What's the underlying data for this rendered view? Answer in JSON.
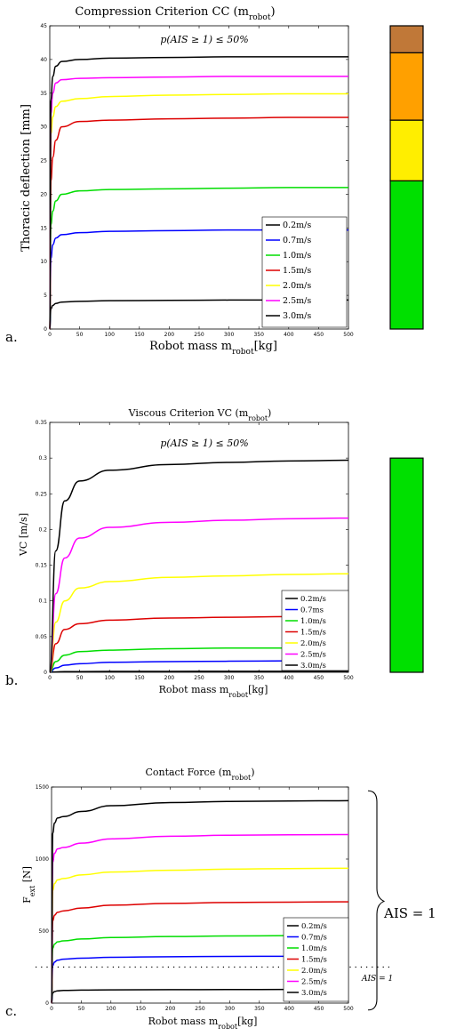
{
  "chart_data": [
    {
      "type": "line",
      "panel_label": "a.",
      "title": "Compression Criterion CC (m",
      "title_sub": "robot",
      "title_end": ")",
      "xlabel": "Robot mass m",
      "xlabel_sub": "robot",
      "xlabel_end": "[kg]",
      "ylabel": "Thoracic deflection [mm]",
      "annotation": "p(AIS ≥ 1) ≤ 50%",
      "xlim": [
        0,
        500
      ],
      "ylim": [
        0,
        45
      ],
      "xticks": [
        "0",
        "50",
        "100",
        "150",
        "200",
        "250",
        "300",
        "350",
        "400",
        "450",
        "500"
      ],
      "yticks": [
        "0",
        "5",
        "10",
        "15",
        "20",
        "25",
        "30",
        "35",
        "40",
        "45"
      ],
      "series": [
        {
          "name": "0.2m/s",
          "color": "#000000",
          "x": [
            0,
            2,
            5,
            10,
            20,
            50,
            100,
            200,
            300,
            400,
            500
          ],
          "y": [
            0,
            3.0,
            3.5,
            3.8,
            4.0,
            4.1,
            4.2,
            4.25,
            4.3,
            4.3,
            4.3
          ]
        },
        {
          "name": "0.7m/s",
          "color": "#0000ff",
          "x": [
            0,
            2,
            5,
            10,
            20,
            50,
            100,
            200,
            300,
            400,
            500
          ],
          "y": [
            0,
            10.5,
            12.5,
            13.5,
            14.0,
            14.3,
            14.5,
            14.6,
            14.7,
            14.7,
            14.7
          ]
        },
        {
          "name": "1.0m/s",
          "color": "#00dd00",
          "x": [
            0,
            2,
            5,
            10,
            20,
            50,
            100,
            200,
            300,
            400,
            500
          ],
          "y": [
            0,
            15.5,
            17.5,
            19.0,
            20.0,
            20.5,
            20.7,
            20.8,
            20.9,
            21.0,
            21.0
          ]
        },
        {
          "name": "1.5m/s",
          "color": "#dd0000",
          "x": [
            0,
            2,
            5,
            10,
            20,
            50,
            100,
            200,
            300,
            400,
            500
          ],
          "y": [
            0,
            22.0,
            25.5,
            28.0,
            30.0,
            30.8,
            31.0,
            31.2,
            31.3,
            31.4,
            31.4
          ]
        },
        {
          "name": "2.0m/s",
          "color": "#ffff00",
          "x": [
            0,
            2,
            5,
            10,
            20,
            50,
            100,
            200,
            300,
            400,
            500
          ],
          "y": [
            0,
            29.0,
            31.5,
            33.0,
            33.8,
            34.2,
            34.5,
            34.7,
            34.8,
            34.9,
            34.9
          ]
        },
        {
          "name": "2.5m/s",
          "color": "#ff00ff",
          "x": [
            0,
            2,
            5,
            10,
            20,
            50,
            100,
            200,
            300,
            400,
            500
          ],
          "y": [
            0,
            32.0,
            35.0,
            36.5,
            37.0,
            37.2,
            37.3,
            37.4,
            37.5,
            37.5,
            37.5
          ]
        },
        {
          "name": "3.0m/s",
          "color": "#000000",
          "x": [
            0,
            2,
            5,
            10,
            20,
            50,
            100,
            200,
            300,
            400,
            500
          ],
          "y": [
            0,
            34.0,
            37.5,
            39.0,
            39.7,
            40.0,
            40.2,
            40.3,
            40.4,
            40.4,
            40.4
          ]
        }
      ],
      "severity_bar": [
        {
          "color": "#00e000",
          "from": 0,
          "to": 22
        },
        {
          "color": "#ffee00",
          "from": 22,
          "to": 31
        },
        {
          "color": "#ffa000",
          "from": 31,
          "to": 41
        },
        {
          "color": "#c07838",
          "from": 41,
          "to": 45
        }
      ]
    },
    {
      "type": "line",
      "panel_label": "b.",
      "title": "Viscous Criterion VC (m",
      "title_sub": "robot",
      "title_end": ")",
      "xlabel": "Robot mass m",
      "xlabel_sub": "robot",
      "xlabel_end": "[kg]",
      "ylabel": "VC [m/s]",
      "annotation": "p(AIS ≥ 1) ≤ 50%",
      "xlim": [
        0,
        500
      ],
      "ylim": [
        0,
        0.35
      ],
      "xticks": [
        "0",
        "50",
        "100",
        "150",
        "200",
        "250",
        "300",
        "350",
        "400",
        "450",
        "500"
      ],
      "yticks": [
        "0",
        "0.05",
        "0.1",
        "0.15",
        "0.2",
        "0.25",
        "0.3",
        "0.35"
      ],
      "series": [
        {
          "name": "0.2m/s",
          "color": "#000000",
          "x": [
            0,
            10,
            25,
            50,
            100,
            200,
            300,
            400,
            500
          ],
          "y": [
            0,
            0.0005,
            0.001,
            0.001,
            0.0012,
            0.0013,
            0.0014,
            0.0014,
            0.0014
          ]
        },
        {
          "name": "0.7ms",
          "color": "#0000ff",
          "x": [
            0,
            10,
            25,
            50,
            100,
            200,
            300,
            400,
            500
          ],
          "y": [
            0,
            0.006,
            0.01,
            0.012,
            0.014,
            0.015,
            0.0155,
            0.016,
            0.016
          ]
        },
        {
          "name": "1.0m/s",
          "color": "#00dd00",
          "x": [
            0,
            10,
            25,
            50,
            100,
            200,
            300,
            400,
            500
          ],
          "y": [
            0,
            0.015,
            0.024,
            0.029,
            0.031,
            0.033,
            0.034,
            0.034,
            0.035
          ]
        },
        {
          "name": "1.5m/s",
          "color": "#dd0000",
          "x": [
            0,
            10,
            25,
            50,
            100,
            200,
            300,
            400,
            500
          ],
          "y": [
            0,
            0.04,
            0.06,
            0.068,
            0.073,
            0.076,
            0.077,
            0.078,
            0.078
          ]
        },
        {
          "name": "2.0m/s",
          "color": "#ffff00",
          "x": [
            0,
            10,
            25,
            50,
            100,
            200,
            300,
            400,
            500
          ],
          "y": [
            0,
            0.07,
            0.1,
            0.118,
            0.127,
            0.133,
            0.135,
            0.137,
            0.138
          ]
        },
        {
          "name": "2.5m/s",
          "color": "#ff00ff",
          "x": [
            0,
            10,
            25,
            50,
            100,
            200,
            300,
            400,
            500
          ],
          "y": [
            0,
            0.11,
            0.16,
            0.188,
            0.203,
            0.21,
            0.213,
            0.215,
            0.216
          ]
        },
        {
          "name": "3.0m/s",
          "color": "#000000",
          "x": [
            0,
            10,
            25,
            50,
            100,
            200,
            300,
            400,
            500
          ],
          "y": [
            0,
            0.17,
            0.24,
            0.268,
            0.283,
            0.291,
            0.294,
            0.296,
            0.297
          ]
        }
      ],
      "severity_bar": [
        {
          "color": "#00e000",
          "from": 0,
          "to": 0.3
        }
      ]
    },
    {
      "type": "line",
      "panel_label": "c.",
      "title": "Contact Force (m",
      "title_sub": "robot",
      "title_end": ")",
      "xlabel": "Robot mass m",
      "xlabel_sub": "robot",
      "xlabel_end": "[kg]",
      "ylabel": "F",
      "ylabel_sub": "ext",
      "ylabel_end": " [N]",
      "xlim": [
        0,
        500
      ],
      "ylim": [
        0,
        1500
      ],
      "xticks": [
        "0",
        "50",
        "100",
        "150",
        "200",
        "250",
        "300",
        "350",
        "400",
        "450",
        "500"
      ],
      "yticks": [
        "0",
        "500",
        "1000",
        "1500"
      ],
      "threshold": {
        "value": 250,
        "label": "AIS = 1"
      },
      "brace_label": "AIS = 1",
      "series": [
        {
          "name": "0.2m/s",
          "color": "#000000",
          "x": [
            0,
            2,
            5,
            10,
            20,
            50,
            100,
            200,
            300,
            400,
            500
          ],
          "y": [
            0,
            70,
            80,
            85,
            88,
            90,
            92,
            93,
            94,
            95,
            95
          ]
        },
        {
          "name": "0.7m/s",
          "color": "#0000ff",
          "x": [
            0,
            2,
            5,
            10,
            20,
            50,
            100,
            200,
            300,
            400,
            500
          ],
          "y": [
            0,
            260,
            285,
            298,
            305,
            312,
            318,
            322,
            324,
            325,
            325
          ]
        },
        {
          "name": "1.0m/s",
          "color": "#00dd00",
          "x": [
            0,
            2,
            5,
            10,
            20,
            50,
            100,
            200,
            300,
            400,
            500
          ],
          "y": [
            0,
            380,
            410,
            425,
            432,
            445,
            455,
            462,
            466,
            468,
            470
          ]
        },
        {
          "name": "1.5m/s",
          "color": "#dd0000",
          "x": [
            0,
            2,
            5,
            10,
            20,
            50,
            100,
            200,
            300,
            400,
            500
          ],
          "y": [
            0,
            570,
            610,
            630,
            640,
            660,
            680,
            692,
            698,
            701,
            703
          ]
        },
        {
          "name": "2.0m/s",
          "color": "#ffff00",
          "x": [
            0,
            2,
            5,
            10,
            20,
            50,
            100,
            200,
            300,
            400,
            500
          ],
          "y": [
            0,
            780,
            830,
            855,
            865,
            890,
            910,
            922,
            930,
            934,
            936
          ]
        },
        {
          "name": "2.5m/s",
          "color": "#ff00ff",
          "x": [
            0,
            2,
            5,
            10,
            20,
            50,
            100,
            200,
            300,
            400,
            500
          ],
          "y": [
            0,
            980,
            1040,
            1070,
            1080,
            1110,
            1140,
            1158,
            1165,
            1168,
            1170
          ]
        },
        {
          "name": "3.0m/s",
          "color": "#000000",
          "x": [
            0,
            2,
            5,
            10,
            20,
            50,
            100,
            200,
            300,
            400,
            500
          ],
          "y": [
            0,
            1180,
            1250,
            1285,
            1295,
            1330,
            1370,
            1392,
            1400,
            1403,
            1405
          ]
        }
      ]
    }
  ]
}
